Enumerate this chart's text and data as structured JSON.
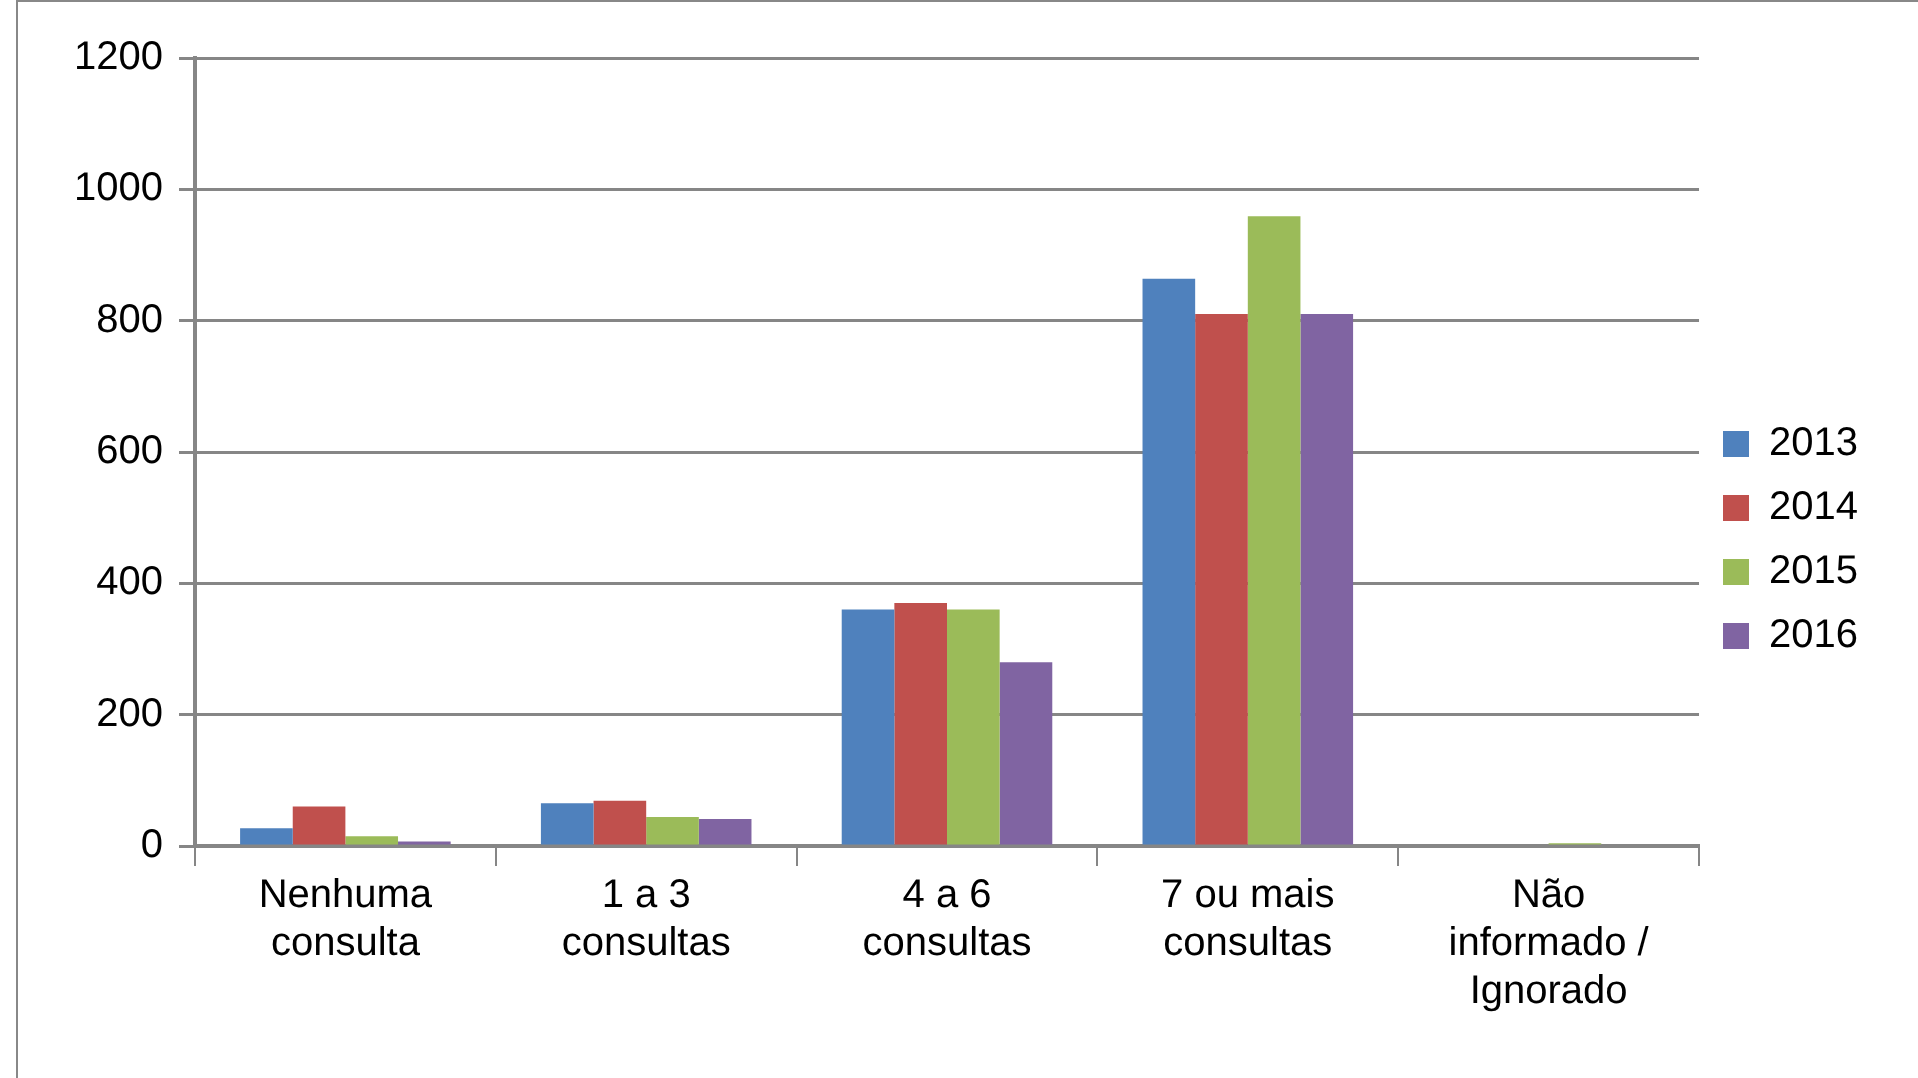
{
  "chart_data": {
    "type": "bar",
    "categories": [
      "Nenhuma consulta",
      "1 a 3 consultas",
      "4 a 6 consultas",
      "7 ou mais consultas",
      "Não informado / Ignorado"
    ],
    "series": [
      {
        "name": "2013",
        "color": "#4f81bd",
        "values": [
          27,
          65,
          360,
          864,
          0
        ]
      },
      {
        "name": "2014",
        "color": "#c0504d",
        "values": [
          60,
          69,
          370,
          810,
          0
        ]
      },
      {
        "name": "2015",
        "color": "#9bbb59",
        "values": [
          15,
          44,
          360,
          959,
          4
        ]
      },
      {
        "name": "2016",
        "color": "#8064a2",
        "values": [
          7,
          41,
          280,
          810,
          0
        ]
      }
    ],
    "ylim": [
      0,
      1200
    ],
    "yticks": [
      0,
      200,
      400,
      600,
      800,
      1000,
      1200
    ],
    "grid": "y",
    "legend": "right"
  }
}
